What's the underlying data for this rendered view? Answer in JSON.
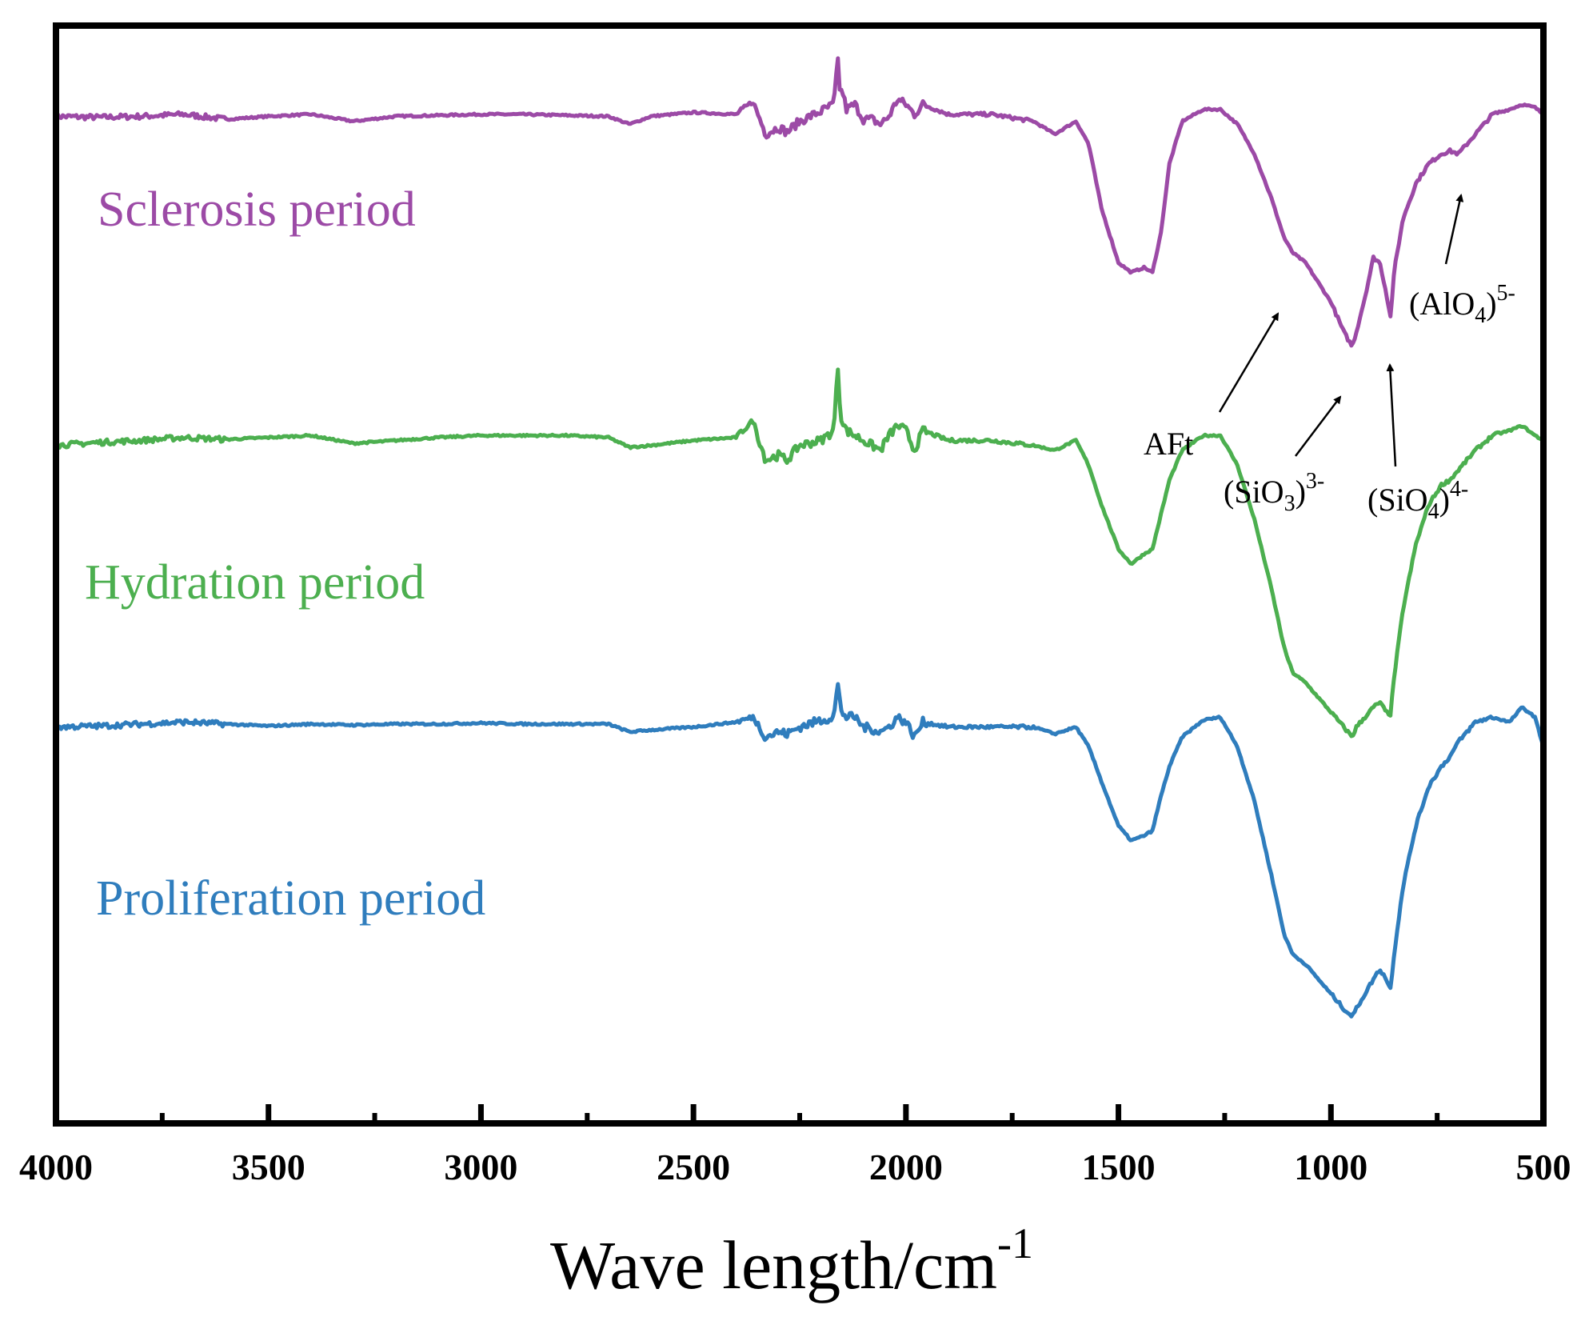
{
  "chart_data": {
    "type": "line",
    "title": "",
    "xlabel": "Wave length/cm",
    "xlabel_sup": "-1",
    "ylabel": "",
    "xlim": [
      4000,
      500
    ],
    "x_reversed": true,
    "ylim": [
      0,
      100
    ],
    "grid": false,
    "legend": "inline-left",
    "x_ticks": [
      4000,
      3500,
      3000,
      2500,
      2000,
      1500,
      1000,
      500
    ],
    "x_minor_ticks": [
      3750,
      3250,
      2750,
      2250,
      1750,
      1250,
      750
    ],
    "series": [
      {
        "name": "Sclerosis period",
        "color": "#9c4aa6",
        "x": [
          4000,
          3900,
          3800,
          3700,
          3600,
          3500,
          3400,
          3300,
          3200,
          3100,
          3000,
          2900,
          2800,
          2700,
          2650,
          2600,
          2500,
          2400,
          2360,
          2330,
          2300,
          2280,
          2250,
          2200,
          2170,
          2160,
          2155,
          2150,
          2140,
          2120,
          2100,
          2080,
          2060,
          2040,
          2020,
          2000,
          1980,
          1960,
          1900,
          1800,
          1700,
          1650,
          1600,
          1570,
          1540,
          1500,
          1470,
          1440,
          1420,
          1400,
          1380,
          1350,
          1300,
          1260,
          1220,
          1180,
          1140,
          1110,
          1090,
          1060,
          1030,
          1000,
          970,
          950,
          940,
          920,
          900,
          885,
          870,
          860,
          850,
          830,
          800,
          770,
          740,
          720,
          700,
          660,
          620,
          580,
          550,
          520,
          500
        ],
        "values": [
          94.3,
          94.2,
          94.3,
          94.5,
          94.0,
          94.3,
          94.5,
          93.8,
          94.3,
          94.4,
          94.5,
          94.5,
          94.4,
          94.3,
          93.5,
          94.3,
          94.7,
          94.5,
          95.8,
          92.5,
          93.2,
          92.7,
          93.8,
          94.8,
          95.5,
          100.0,
          96.5,
          97.0,
          95.0,
          95.5,
          94.0,
          94.0,
          93.5,
          94.3,
          96.0,
          95.5,
          94.5,
          95.5,
          94.5,
          94.5,
          93.8,
          92.5,
          93.8,
          91.5,
          85.0,
          79.5,
          78.5,
          79.0,
          78.5,
          82.5,
          89.5,
          93.8,
          95.0,
          95.0,
          93.5,
          90.5,
          86.0,
          82.0,
          80.5,
          79.5,
          77.5,
          75.5,
          72.5,
          71.0,
          72.5,
          76.0,
          80.0,
          79.5,
          76.5,
          74.0,
          79.0,
          84.0,
          87.5,
          89.5,
          90.5,
          90.8,
          90.5,
          92.5,
          94.5,
          95.0,
          95.5,
          95.2,
          94.5
        ]
      },
      {
        "name": "Hydration period",
        "color": "#4caf4f",
        "x": [
          4000,
          3900,
          3800,
          3700,
          3600,
          3500,
          3400,
          3300,
          3200,
          3100,
          3000,
          2900,
          2800,
          2700,
          2650,
          2600,
          2500,
          2400,
          2360,
          2330,
          2300,
          2280,
          2250,
          2200,
          2170,
          2160,
          2155,
          2150,
          2140,
          2120,
          2100,
          2080,
          2060,
          2040,
          2020,
          2000,
          1980,
          1960,
          1900,
          1800,
          1700,
          1650,
          1600,
          1570,
          1540,
          1500,
          1470,
          1440,
          1420,
          1400,
          1380,
          1350,
          1300,
          1260,
          1220,
          1180,
          1140,
          1110,
          1090,
          1060,
          1030,
          1000,
          970,
          950,
          940,
          920,
          900,
          885,
          870,
          860,
          850,
          830,
          800,
          770,
          740,
          720,
          700,
          660,
          620,
          580,
          550,
          520,
          500
        ],
        "values": [
          61.0,
          61.3,
          61.5,
          61.8,
          61.6,
          61.8,
          62.0,
          61.2,
          61.5,
          61.8,
          62.0,
          62.0,
          62.0,
          61.8,
          60.8,
          61.0,
          61.5,
          61.8,
          63.5,
          59.5,
          60.0,
          59.5,
          61.0,
          61.5,
          62.5,
          69.0,
          64.5,
          63.5,
          62.5,
          62.0,
          61.5,
          61.0,
          60.5,
          62.0,
          63.0,
          62.5,
          60.5,
          62.5,
          61.5,
          61.5,
          61.0,
          60.5,
          61.5,
          59.0,
          55.0,
          50.5,
          49.0,
          50.0,
          50.5,
          54.0,
          57.5,
          60.5,
          62.0,
          62.0,
          59.0,
          53.5,
          46.5,
          40.5,
          38.0,
          37.0,
          35.5,
          34.0,
          32.5,
          31.5,
          32.5,
          33.5,
          34.5,
          35.0,
          34.0,
          33.8,
          38.0,
          44.5,
          51.0,
          55.0,
          57.0,
          57.5,
          58.5,
          60.5,
          62.0,
          62.5,
          63.0,
          62.0,
          61.5
        ]
      },
      {
        "name": "Proliferation period",
        "color": "#2f7dbd",
        "x": [
          4000,
          3900,
          3800,
          3700,
          3600,
          3500,
          3400,
          3300,
          3200,
          3100,
          3000,
          2900,
          2800,
          2700,
          2650,
          2600,
          2500,
          2400,
          2360,
          2330,
          2300,
          2280,
          2250,
          2200,
          2170,
          2160,
          2155,
          2150,
          2140,
          2120,
          2100,
          2080,
          2060,
          2040,
          2020,
          2000,
          1980,
          1960,
          1900,
          1800,
          1700,
          1650,
          1600,
          1570,
          1540,
          1500,
          1470,
          1440,
          1420,
          1400,
          1380,
          1350,
          1300,
          1260,
          1220,
          1180,
          1140,
          1110,
          1090,
          1060,
          1030,
          1000,
          970,
          950,
          940,
          920,
          900,
          885,
          870,
          860,
          850,
          830,
          800,
          770,
          740,
          720,
          700,
          660,
          620,
          580,
          550,
          520,
          500
        ],
        "values": [
          32.5,
          32.6,
          32.8,
          33.0,
          32.8,
          32.6,
          32.8,
          32.7,
          32.8,
          32.8,
          32.9,
          32.8,
          32.8,
          32.8,
          32.0,
          32.2,
          32.5,
          33.0,
          33.5,
          31.5,
          32.0,
          31.8,
          32.5,
          33.2,
          33.5,
          36.8,
          34.8,
          34.0,
          33.5,
          33.5,
          32.5,
          32.3,
          32.0,
          32.5,
          33.5,
          33.0,
          31.5,
          33.0,
          32.5,
          32.5,
          32.5,
          31.8,
          32.5,
          30.5,
          27.0,
          22.5,
          21.0,
          21.5,
          22.0,
          25.5,
          28.5,
          31.5,
          33.2,
          33.5,
          30.5,
          25.0,
          17.5,
          11.5,
          9.5,
          8.5,
          7.0,
          5.5,
          4.0,
          3.2,
          4.0,
          5.5,
          7.0,
          8.0,
          7.0,
          6.0,
          10.0,
          16.5,
          22.5,
          26.5,
          28.5,
          29.5,
          31.0,
          33.0,
          33.5,
          33.0,
          34.5,
          33.5,
          30.5
        ]
      }
    ],
    "annotations": [
      {
        "text": "AFt",
        "sub": "",
        "sup": "",
        "points_to_x": 1080,
        "series": "Sclerosis period"
      },
      {
        "text": "(SiO",
        "sub": "3",
        "after": ")",
        "sup": "3-",
        "points_to_x": 950,
        "series": "Sclerosis period"
      },
      {
        "text": "(SiO",
        "sub": "4",
        "after": ")",
        "sup": "4-",
        "points_to_x": 858,
        "series": "Sclerosis period"
      },
      {
        "text": "(AlO",
        "sub": "4",
        "after": ")",
        "sup": "5-",
        "points_to_x": 705,
        "series": "Sclerosis period"
      }
    ]
  }
}
